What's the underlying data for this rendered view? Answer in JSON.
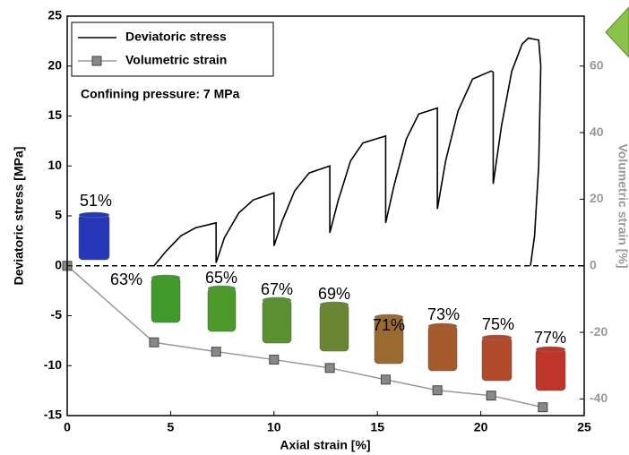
{
  "chart_data": {
    "type": "line",
    "title_annotation": "Confining pressure: 7 MPa",
    "x_label": "Axial strain [%]",
    "y_label": "Deviatoric stress [MPa]",
    "y2_label": "Volumetric strain [%]",
    "xlim": [
      0,
      25
    ],
    "xticks": [
      0,
      5,
      10,
      15,
      20,
      25
    ],
    "ylim": [
      -15,
      25
    ],
    "yticks": [
      -15,
      -10,
      -5,
      0,
      5,
      10,
      15,
      20,
      25
    ],
    "y2lim": [
      -45,
      75
    ],
    "y2ticks": [
      -40,
      -20,
      0,
      20,
      40,
      60
    ],
    "hline": 0,
    "series": [
      {
        "name": "Deviatoric stress",
        "color": "#000000",
        "marker": "none",
        "x": [
          4,
          4.2,
          4.8,
          5.5,
          6.2,
          7.2,
          7.2,
          7.6,
          8.3,
          9,
          10,
          10,
          10.4,
          11,
          11.7,
          12.7,
          12.7,
          13.1,
          13.7,
          14.3,
          15.4,
          15.4,
          15.8,
          16.4,
          17,
          17.9,
          17.9,
          18.3,
          18.9,
          19.6,
          20.5,
          20.6,
          20.6,
          21,
          21.5,
          22,
          22.3,
          22.8,
          22.9,
          22.8,
          22.6,
          22.4
        ],
        "values": [
          0,
          0,
          1.5,
          3,
          3.8,
          4.3,
          0.3,
          2.8,
          5.3,
          6.6,
          7.3,
          2,
          4.5,
          7.5,
          9.3,
          10,
          3.3,
          6.5,
          10.5,
          12.3,
          13,
          4.3,
          8,
          12.7,
          15.2,
          15.8,
          5.7,
          10.5,
          15.5,
          18.7,
          19.5,
          19.4,
          8.2,
          14,
          19.5,
          22.2,
          22.8,
          22.6,
          20,
          10,
          3,
          0
        ]
      },
      {
        "name": "Volumetric strain",
        "color": "#999999",
        "marker": "square",
        "axis": "y2",
        "x": [
          0,
          4.2,
          7.2,
          10,
          12.7,
          15.4,
          17.9,
          20.5,
          23
        ],
        "values": [
          0,
          -23,
          -25.8,
          -28.2,
          -30.7,
          -34.2,
          -37.4,
          -39,
          -42.5
        ]
      }
    ],
    "specimens": [
      {
        "label": "51%",
        "color": "#2637b8"
      },
      {
        "label": "63%",
        "color": "#3f9a2a"
      },
      {
        "label": "65%",
        "color": "#4c9a2a"
      },
      {
        "label": "67%",
        "color": "#5a9030"
      },
      {
        "label": "69%",
        "color": "#6a8632"
      },
      {
        "label": "71%",
        "color": "#9a6a30"
      },
      {
        "label": "73%",
        "color": "#a55a2c"
      },
      {
        "label": "75%",
        "color": "#b04a2a"
      },
      {
        "label": "77%",
        "color": "#c0352a"
      }
    ]
  }
}
